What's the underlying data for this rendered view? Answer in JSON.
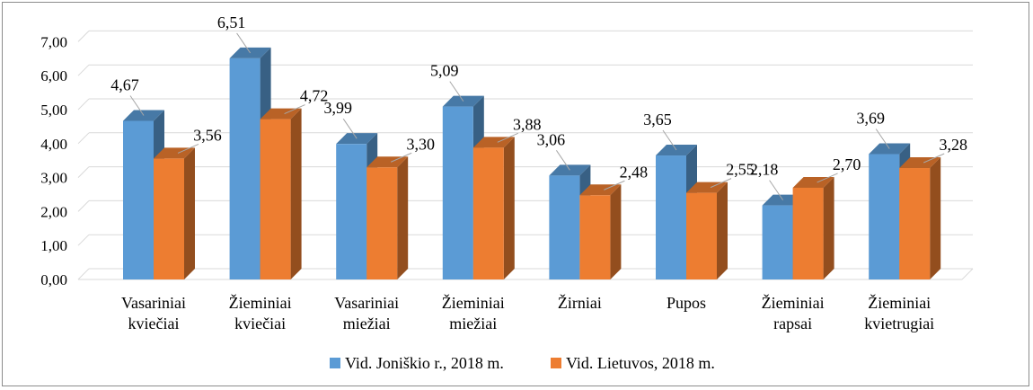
{
  "chart_data": {
    "type": "bar",
    "categories": [
      [
        "Vasariniai",
        "kviečiai"
      ],
      [
        "Žieminiai",
        "kviečiai"
      ],
      [
        "Vasariniai",
        "miežiai"
      ],
      [
        "Žieminiai",
        "miežiai"
      ],
      [
        "Žirniai"
      ],
      [
        "Pupos"
      ],
      [
        "Žieminiai",
        "rapsai"
      ],
      [
        "Žieminiai",
        "kvietrugiai"
      ]
    ],
    "series": [
      {
        "name": "Vid. Joniškio r., 2018 m.",
        "color": "#5b9bd5",
        "values": [
          4.67,
          6.51,
          3.99,
          5.09,
          3.06,
          3.65,
          2.18,
          3.69
        ],
        "labels": [
          "4,67",
          "6,51",
          "3,99",
          "5,09",
          "3,06",
          "3,65",
          "2,18",
          "3,69"
        ]
      },
      {
        "name": "Vid. Lietuvos, 2018 m.",
        "color": "#ed7d31",
        "values": [
          3.56,
          4.72,
          3.3,
          3.88,
          2.48,
          2.55,
          2.7,
          3.28
        ],
        "labels": [
          "3,56",
          "4,72",
          "3,30",
          "3,88",
          "2,48",
          "2,55",
          "2,70",
          "3,28"
        ]
      }
    ],
    "ylim": [
      0,
      7
    ],
    "yticks": [
      "0,00",
      "1,00",
      "2,00",
      "3,00",
      "4,00",
      "5,00",
      "6,00",
      "7,00"
    ],
    "grid": true,
    "legend_position": "bottom",
    "style": "3d-column"
  }
}
